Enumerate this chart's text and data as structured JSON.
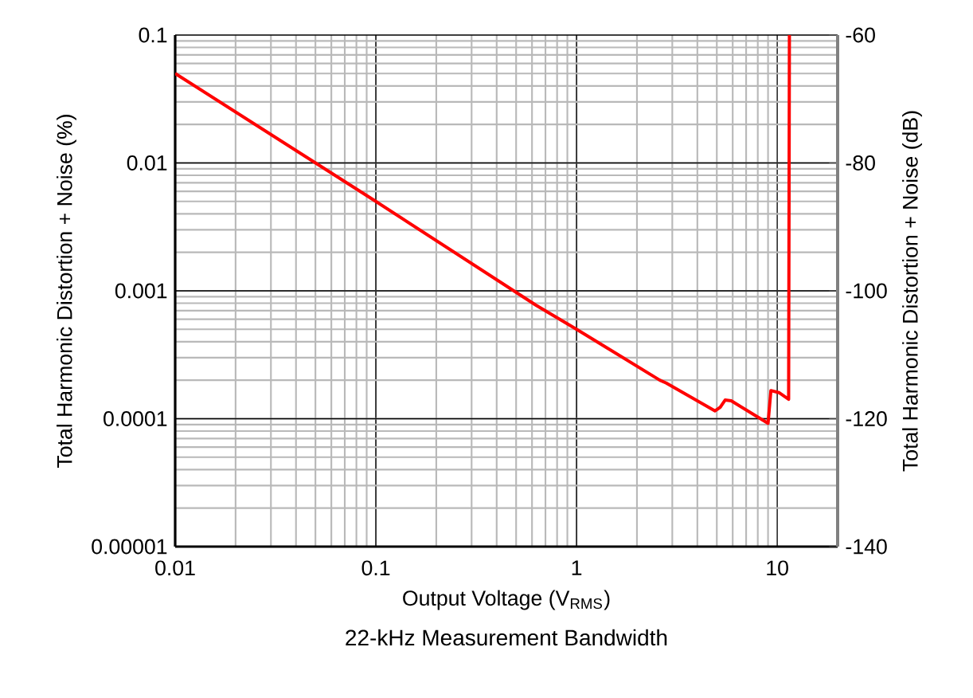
{
  "chart_data": {
    "type": "line",
    "title": "22-kHz Measurement Bandwidth",
    "xlabel": "Output Voltage (V$_{RMS}$)",
    "ylabel": "Total Harmonic Distortion + Noise (%)",
    "y2label": "Total Harmonic Distortion + Noise (dB)",
    "log": "xy",
    "grid": true,
    "xlim": [
      0.01,
      20
    ],
    "xticks": [
      {
        "value": 0.01,
        "label": "0.01"
      },
      {
        "value": 0.1,
        "label": "0.1"
      },
      {
        "value": 1,
        "label": "1"
      },
      {
        "value": 10,
        "label": "10"
      }
    ],
    "ylim": [
      1e-05,
      0.1
    ],
    "yticks": [
      {
        "value": 1e-05,
        "label": "0.00001"
      },
      {
        "value": 0.0001,
        "label": "0.0001"
      },
      {
        "value": 0.001,
        "label": "0.001"
      },
      {
        "value": 0.01,
        "label": "0.01"
      },
      {
        "value": 0.1,
        "label": "0.1"
      }
    ],
    "y2lim": [
      -140,
      -60
    ],
    "y2ticks": [
      -140,
      -120,
      -100,
      -80,
      -60
    ],
    "series": [
      {
        "color": "#ff0000",
        "x": [
          0.01,
          0.1,
          0.63,
          1,
          2.6,
          2.8,
          4.9,
          5.2,
          5.5,
          5.9,
          9.0,
          9.3,
          10.2,
          11.4,
          11.5
        ],
        "values": [
          0.05,
          0.005,
          0.00077,
          0.0005,
          0.0002,
          0.00019,
          0.000115,
          0.000123,
          0.00014,
          0.000138,
          9.2e-05,
          0.000166,
          0.00016,
          0.000142,
          0.1
        ]
      }
    ]
  }
}
